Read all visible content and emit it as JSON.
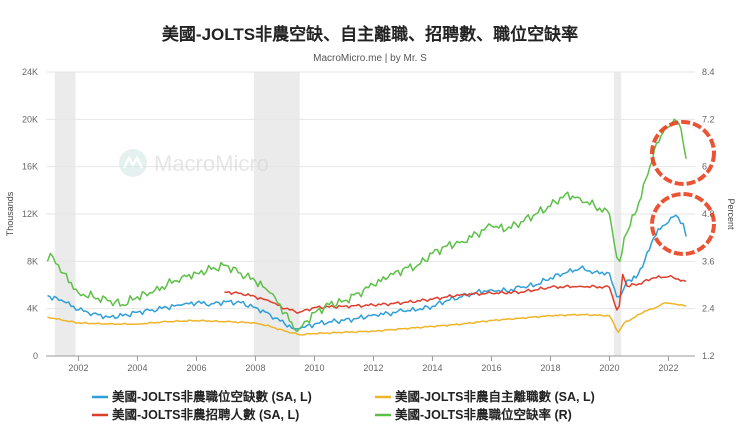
{
  "title": "美國-JOLTS非農空缺、自主離職、招聘數、職位空缺率",
  "subtitle": "MacroMicro.me | by Mr. S",
  "watermark": "MacroMicro",
  "chart_data": {
    "type": "line",
    "y_left": {
      "label": "Thousands",
      "min": 0,
      "max": 24000,
      "ticks": [
        "0",
        "4K",
        "8K",
        "12K",
        "16K",
        "20K",
        "24K"
      ]
    },
    "y_right": {
      "label": "Percent",
      "min": 1.2,
      "max": 8.4,
      "ticks": [
        "1.2",
        "2.4",
        "3.6",
        "4.8",
        "6",
        "7.2",
        "8.4"
      ]
    },
    "x_range": [
      2000.9,
      2022.9
    ],
    "x_ticks": [
      "2002",
      "2004",
      "2006",
      "2008",
      "2010",
      "2012",
      "2014",
      "2016",
      "2018",
      "2020",
      "2022"
    ],
    "recessions": [
      [
        2001.2,
        2001.9
      ],
      [
        2007.95,
        2009.5
      ],
      [
        2020.15,
        2020.4
      ]
    ],
    "grid": true,
    "legend_position": "bottom",
    "series": [
      {
        "name": "美國-JOLTS非農職位空缺數 (SA, L)",
        "axis": "left",
        "color": "#2f9fd8",
        "x": [
          2000.95,
          2001.5,
          2002.0,
          2002.5,
          2003.0,
          2003.5,
          2004.0,
          2004.5,
          2005.0,
          2005.5,
          2006.0,
          2006.5,
          2007.0,
          2007.5,
          2008.0,
          2008.5,
          2009.0,
          2009.3,
          2009.5,
          2010.0,
          2010.5,
          2011.0,
          2011.5,
          2012.0,
          2012.5,
          2013.0,
          2013.5,
          2014.0,
          2014.5,
          2015.0,
          2015.5,
          2016.0,
          2016.5,
          2017.0,
          2017.5,
          2018.0,
          2018.5,
          2019.0,
          2019.5,
          2020.0,
          2020.25,
          2020.4,
          2020.6,
          2020.9,
          2021.2,
          2021.5,
          2021.8,
          2022.0,
          2022.25,
          2022.5,
          2022.6
        ],
        "y": [
          5100,
          4600,
          3900,
          3600,
          3300,
          3400,
          3700,
          3900,
          4100,
          4300,
          4500,
          4400,
          4600,
          4500,
          4100,
          3500,
          2700,
          2300,
          2300,
          2700,
          2900,
          3000,
          3200,
          3500,
          3600,
          3800,
          3900,
          4200,
          4700,
          5000,
          5400,
          5600,
          5500,
          5800,
          6000,
          6600,
          7000,
          7400,
          7100,
          7000,
          5000,
          5200,
          6400,
          6600,
          8100,
          10000,
          11000,
          11300,
          11900,
          11200,
          10100
        ]
      },
      {
        "name": "美國-JOLTS非農自主離職數 (SA, L)",
        "axis": "left",
        "color": "#f0b428",
        "x": [
          2000.95,
          2001.5,
          2002.0,
          2003.0,
          2004.0,
          2005.0,
          2006.0,
          2007.0,
          2008.0,
          2008.5,
          2009.0,
          2009.5,
          2010.0,
          2011.0,
          2012.0,
          2013.0,
          2014.0,
          2015.0,
          2016.0,
          2017.0,
          2018.0,
          2019.0,
          2020.0,
          2020.3,
          2020.5,
          2020.8,
          2021.2,
          2021.5,
          2021.9,
          2022.2,
          2022.5,
          2022.6
        ],
        "y": [
          3300,
          3000,
          2800,
          2700,
          2700,
          2900,
          3000,
          2900,
          2800,
          2500,
          2100,
          1800,
          1900,
          2000,
          2100,
          2300,
          2500,
          2700,
          3000,
          3200,
          3400,
          3500,
          3400,
          2000,
          2800,
          3200,
          3800,
          4000,
          4500,
          4400,
          4300,
          4200
        ]
      },
      {
        "name": "美國-JOLTS非農招聘人數 (SA, L)",
        "axis": "left",
        "color": "#e03c2c",
        "x": [
          2006.95,
          2007.5,
          2008.0,
          2008.5,
          2009.0,
          2009.5,
          2010.0,
          2011.0,
          2012.0,
          2013.0,
          2014.0,
          2015.0,
          2016.0,
          2017.0,
          2018.0,
          2019.0,
          2020.0,
          2020.25,
          2020.33,
          2020.45,
          2020.6,
          2021.0,
          2021.5,
          2022.0,
          2022.5,
          2022.6
        ],
        "y": [
          5400,
          5300,
          5000,
          4600,
          4000,
          3700,
          4100,
          4200,
          4300,
          4500,
          4800,
          5200,
          5300,
          5400,
          5800,
          5900,
          5800,
          3900,
          4200,
          6900,
          5900,
          6100,
          6600,
          6700,
          6400,
          6300
        ]
      },
      {
        "name": "美國-JOLTS非農職位空缺率 (R)",
        "axis": "right",
        "color": "#5cc046",
        "x": [
          2000.95,
          2001.05,
          2001.5,
          2002.0,
          2002.5,
          2003.0,
          2003.5,
          2004.0,
          2004.5,
          2005.0,
          2005.5,
          2006.0,
          2006.5,
          2007.0,
          2007.5,
          2008.0,
          2008.5,
          2009.0,
          2009.3,
          2009.5,
          2010.0,
          2010.5,
          2011.0,
          2011.5,
          2012.0,
          2012.5,
          2013.0,
          2013.5,
          2014.0,
          2014.5,
          2015.0,
          2015.5,
          2016.0,
          2016.5,
          2017.0,
          2017.5,
          2018.0,
          2018.5,
          2019.0,
          2019.5,
          2020.0,
          2020.25,
          2020.35,
          2020.5,
          2020.7,
          2021.0,
          2021.3,
          2021.6,
          2021.9,
          2022.0,
          2022.2,
          2022.35,
          2022.5,
          2022.6
        ],
        "y": [
          3.6,
          3.8,
          3.3,
          2.8,
          2.7,
          2.6,
          2.5,
          2.7,
          2.8,
          3.0,
          3.2,
          3.3,
          3.4,
          3.5,
          3.3,
          3.1,
          2.8,
          2.3,
          1.9,
          1.9,
          2.3,
          2.5,
          2.6,
          2.8,
          3.0,
          3.2,
          3.4,
          3.5,
          3.8,
          4.0,
          4.1,
          4.3,
          4.5,
          4.4,
          4.6,
          4.8,
          5.0,
          5.3,
          5.2,
          5.0,
          4.8,
          3.7,
          3.6,
          4.2,
          4.5,
          5.1,
          5.8,
          6.6,
          7.0,
          7.0,
          7.2,
          7.1,
          6.6,
          6.2
        ]
      }
    ]
  }
}
